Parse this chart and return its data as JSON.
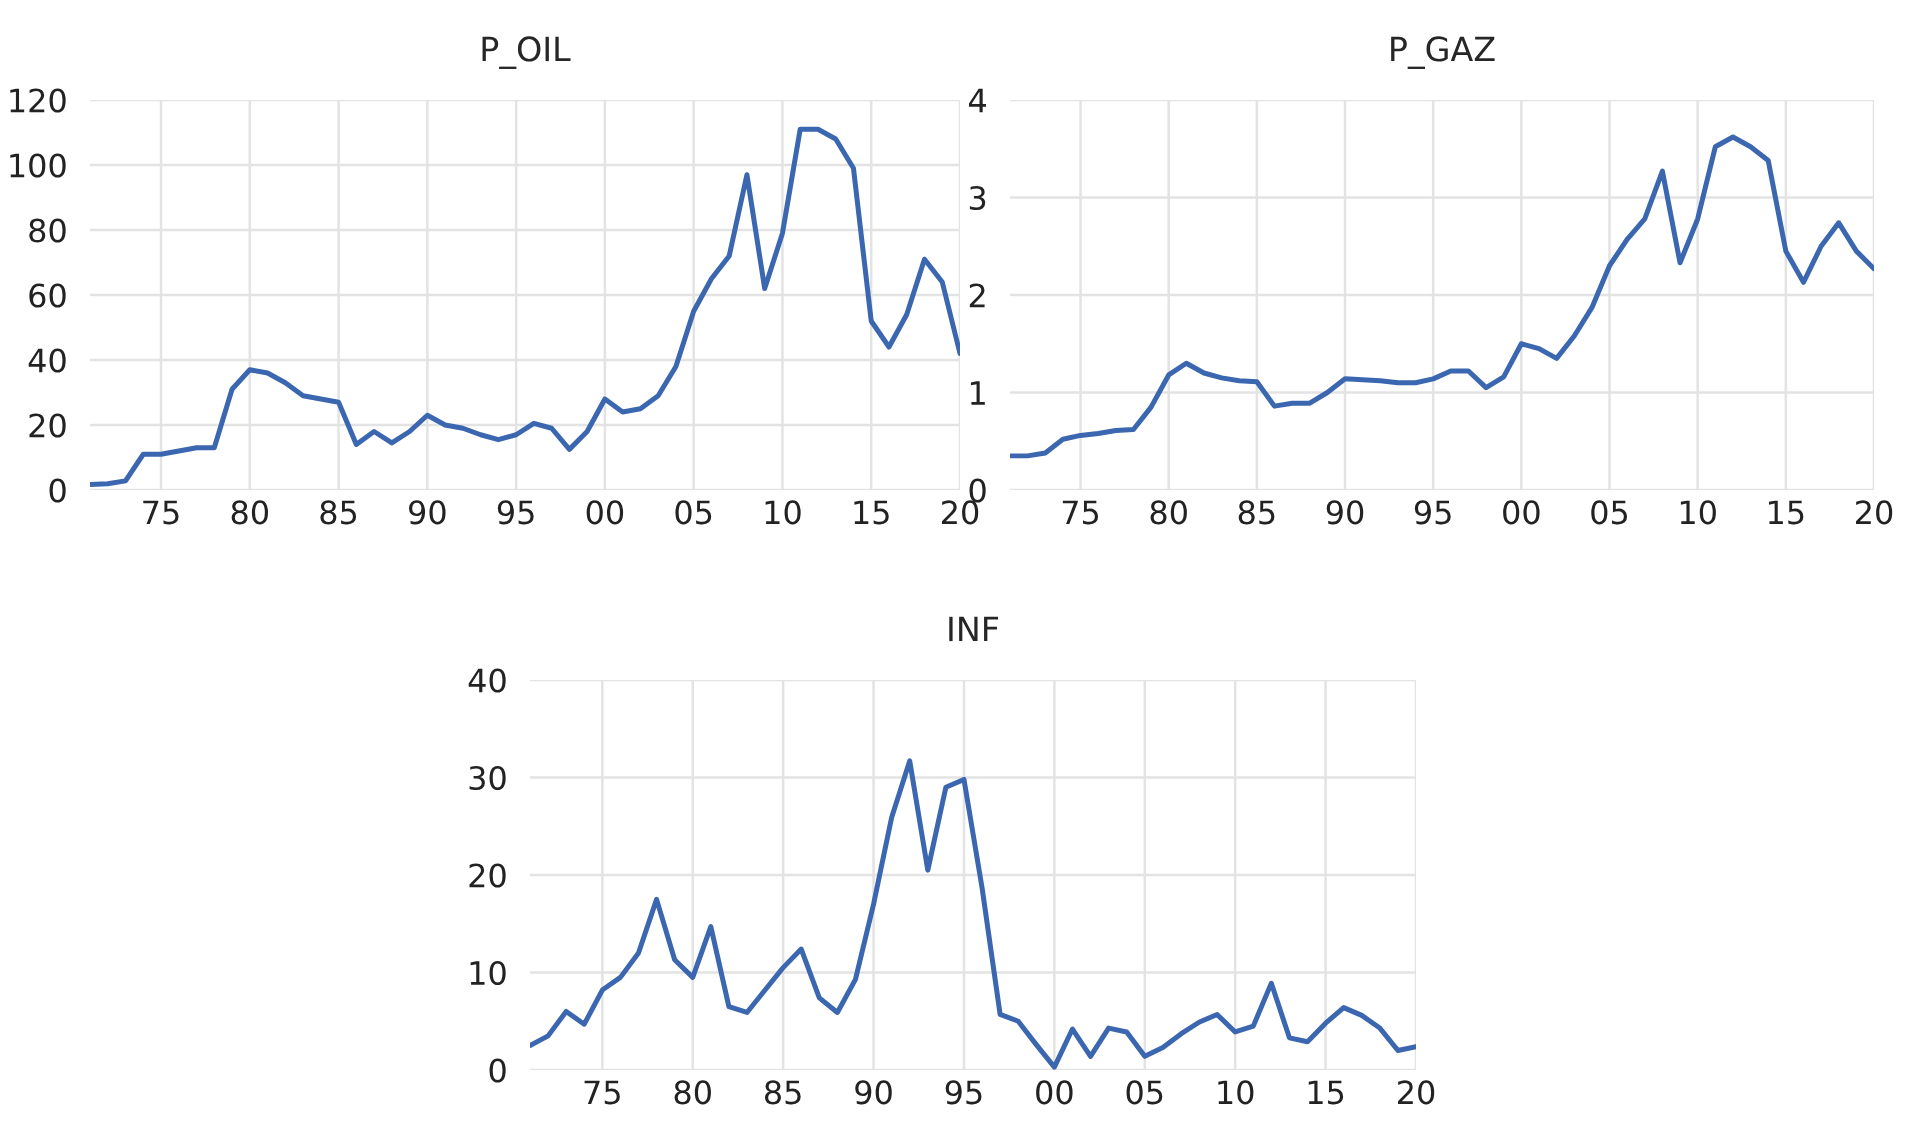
{
  "chart_data": [
    {
      "type": "line",
      "title": "P_OIL",
      "x": [
        1971,
        1972,
        1973,
        1974,
        1975,
        1976,
        1977,
        1978,
        1979,
        1980,
        1981,
        1982,
        1983,
        1984,
        1985,
        1986,
        1987,
        1988,
        1989,
        1990,
        1991,
        1992,
        1993,
        1994,
        1995,
        1996,
        1997,
        1998,
        1999,
        2000,
        2001,
        2002,
        2003,
        2004,
        2005,
        2006,
        2007,
        2008,
        2009,
        2010,
        2011,
        2012,
        2013,
        2014,
        2015,
        2016,
        2017,
        2018,
        2019,
        2020
      ],
      "series": [
        {
          "color": "#3b66b0",
          "values": [
            1.7,
            1.9,
            2.8,
            11,
            11,
            12,
            13,
            13,
            31,
            37,
            36,
            33,
            29,
            28,
            27,
            14,
            18,
            14.5,
            18,
            23,
            20,
            19,
            17,
            15.5,
            17,
            20.5,
            19,
            12.5,
            18,
            28,
            24,
            25,
            29,
            38,
            55,
            65,
            72,
            97,
            62,
            79,
            111,
            111,
            108,
            99,
            52,
            44,
            54,
            71,
            64,
            42
          ]
        }
      ],
      "xlim": [
        1971,
        2020
      ],
      "ylim": [
        0,
        120
      ],
      "yticks": [
        0,
        20,
        40,
        60,
        80,
        100,
        120
      ],
      "xticks": [
        {
          "value": 1975,
          "label": "75"
        },
        {
          "value": 1980,
          "label": "80"
        },
        {
          "value": 1985,
          "label": "85"
        },
        {
          "value": 1990,
          "label": "90"
        },
        {
          "value": 1995,
          "label": "95"
        },
        {
          "value": 2000,
          "label": "00"
        },
        {
          "value": 2005,
          "label": "05"
        },
        {
          "value": 2010,
          "label": "10"
        },
        {
          "value": 2015,
          "label": "15"
        },
        {
          "value": 2020,
          "label": "20"
        }
      ],
      "grid": true,
      "legend": false
    },
    {
      "type": "line",
      "title": "P_GAZ",
      "x": [
        1971,
        1972,
        1973,
        1974,
        1975,
        1976,
        1977,
        1978,
        1979,
        1980,
        1981,
        1982,
        1983,
        1984,
        1985,
        1986,
        1987,
        1988,
        1989,
        1990,
        1991,
        1992,
        1993,
        1994,
        1995,
        1996,
        1997,
        1998,
        1999,
        2000,
        2001,
        2002,
        2003,
        2004,
        2005,
        2006,
        2007,
        2008,
        2009,
        2010,
        2011,
        2012,
        2013,
        2014,
        2015,
        2016,
        2017,
        2018,
        2019,
        2020
      ],
      "series": [
        {
          "color": "#3b66b0",
          "values": [
            0.35,
            0.35,
            0.38,
            0.52,
            0.56,
            0.58,
            0.61,
            0.62,
            0.85,
            1.18,
            1.3,
            1.2,
            1.15,
            1.12,
            1.11,
            0.86,
            0.89,
            0.89,
            1.0,
            1.14,
            1.13,
            1.12,
            1.1,
            1.1,
            1.14,
            1.22,
            1.22,
            1.05,
            1.16,
            1.5,
            1.45,
            1.35,
            1.58,
            1.87,
            2.3,
            2.57,
            2.78,
            3.27,
            2.33,
            2.78,
            3.52,
            3.62,
            3.52,
            3.38,
            2.45,
            2.13,
            2.5,
            2.74,
            2.45,
            2.27
          ]
        }
      ],
      "xlim": [
        1971,
        2020
      ],
      "ylim": [
        0,
        4
      ],
      "yticks": [
        0,
        1,
        2,
        3,
        4
      ],
      "xticks": [
        {
          "value": 1975,
          "label": "75"
        },
        {
          "value": 1980,
          "label": "80"
        },
        {
          "value": 1985,
          "label": "85"
        },
        {
          "value": 1990,
          "label": "90"
        },
        {
          "value": 1995,
          "label": "95"
        },
        {
          "value": 2000,
          "label": "00"
        },
        {
          "value": 2005,
          "label": "05"
        },
        {
          "value": 2010,
          "label": "10"
        },
        {
          "value": 2015,
          "label": "15"
        },
        {
          "value": 2020,
          "label": "20"
        }
      ],
      "grid": true,
      "legend": false
    },
    {
      "type": "line",
      "title": "INF",
      "x": [
        1971,
        1972,
        1973,
        1974,
        1975,
        1976,
        1977,
        1978,
        1979,
        1980,
        1981,
        1982,
        1983,
        1984,
        1985,
        1986,
        1987,
        1988,
        1989,
        1990,
        1991,
        1992,
        1993,
        1994,
        1995,
        1996,
        1997,
        1998,
        1999,
        2000,
        2001,
        2002,
        2003,
        2004,
        2005,
        2006,
        2007,
        2008,
        2009,
        2010,
        2011,
        2012,
        2013,
        2014,
        2015,
        2016,
        2017,
        2018,
        2019,
        2020
      ],
      "series": [
        {
          "color": "#3b66b0",
          "values": [
            2.5,
            3.5,
            6,
            4.7,
            8.2,
            9.5,
            12,
            17.5,
            11.3,
            9.5,
            14.7,
            6.5,
            5.9,
            8.2,
            10.5,
            12.4,
            7.4,
            5.9,
            9.3,
            17,
            25.9,
            31.7,
            20.5,
            29,
            29.8,
            18.7,
            5.7,
            5,
            2.6,
            0.3,
            4.2,
            1.4,
            4.3,
            3.9,
            1.4,
            2.3,
            3.7,
            4.9,
            5.7,
            3.9,
            4.5,
            8.9,
            3.3,
            2.9,
            4.8,
            6.4,
            5.6,
            4.3,
            2,
            2.4
          ]
        }
      ],
      "xlim": [
        1971,
        2020
      ],
      "ylim": [
        0,
        40
      ],
      "yticks": [
        0,
        10,
        20,
        30,
        40
      ],
      "xticks": [
        {
          "value": 1975,
          "label": "75"
        },
        {
          "value": 1980,
          "label": "80"
        },
        {
          "value": 1985,
          "label": "85"
        },
        {
          "value": 1990,
          "label": "90"
        },
        {
          "value": 1995,
          "label": "95"
        },
        {
          "value": 2000,
          "label": "00"
        },
        {
          "value": 2005,
          "label": "05"
        },
        {
          "value": 2010,
          "label": "10"
        },
        {
          "value": 2015,
          "label": "15"
        },
        {
          "value": 2020,
          "label": "20"
        }
      ],
      "grid": true,
      "legend": false
    }
  ]
}
